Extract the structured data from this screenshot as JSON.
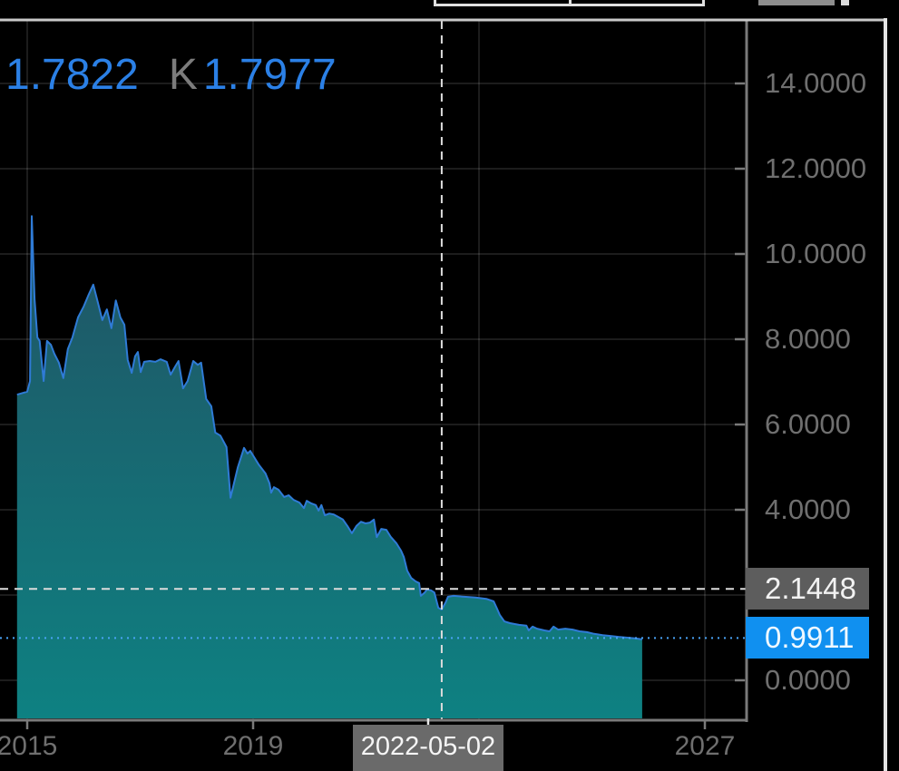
{
  "legend": {
    "low_value": "1.7822",
    "close_key": "K",
    "close_value": "1.7977"
  },
  "y_axis": {
    "tick_labels": [
      {
        "value": 14,
        "label": "14.0000"
      },
      {
        "value": 12,
        "label": "12.0000"
      },
      {
        "value": 10,
        "label": "10.0000"
      },
      {
        "value": 8,
        "label": "8.0000"
      },
      {
        "value": 6,
        "label": "6.0000"
      },
      {
        "value": 4,
        "label": "4.0000"
      },
      {
        "value": 0,
        "label": "0.0000"
      }
    ],
    "gridline_values": [
      14,
      12,
      10,
      8,
      6,
      4,
      2,
      0
    ]
  },
  "x_axis": {
    "tick_labels": [
      {
        "year": 2015,
        "label": "2015"
      },
      {
        "year": 2019,
        "label": "2019"
      },
      {
        "year": 2027,
        "label": "2027"
      }
    ],
    "gridline_years": [
      2015,
      2019,
      2023,
      2027
    ]
  },
  "crosshair": {
    "date_label": "2022-05-02",
    "price_label": "2.1448",
    "price_value": 2.1448,
    "time_year": 2022.34,
    "label_center_year": 2022.1
  },
  "last_price": {
    "label": "0.9911",
    "value": 0.9911
  },
  "colors": {
    "background": "#000000",
    "legend_blue": "#2b80e6",
    "legend_key_gray": "#7c7c7c",
    "line_blue": "#2f7bd6",
    "area_top": "#215263",
    "area_bottom": "#0e8182",
    "price_line_blue": "#49a3f5",
    "last_price_box_blue": "#1090f0",
    "crosshair_white": "#dcdcdc",
    "crosshair_box_gray": "#5d5d5d",
    "date_box_gray": "#6a6a6a",
    "grid": "rgba(255,255,255,0.15)",
    "axis_gray": "#7a7a7a",
    "label_gray": "#6f6f6f"
  },
  "chart_data": {
    "type": "area",
    "title": "",
    "xlabel": "",
    "ylabel": "",
    "grid": true,
    "legend_position": "none",
    "ylim": [
      0,
      15.5
    ],
    "xlim_years": [
      2014.52,
      2030.2
    ],
    "series": [
      {
        "name": "price",
        "points": [
          [
            2014.82,
            6.7
          ],
          [
            2015.0,
            6.77
          ],
          [
            2015.05,
            7.02
          ],
          [
            2015.08,
            10.89
          ],
          [
            2015.13,
            8.94
          ],
          [
            2015.18,
            8.04
          ],
          [
            2015.22,
            7.96
          ],
          [
            2015.29,
            7.02
          ],
          [
            2015.35,
            7.96
          ],
          [
            2015.42,
            7.87
          ],
          [
            2015.48,
            7.66
          ],
          [
            2015.56,
            7.45
          ],
          [
            2015.64,
            7.09
          ],
          [
            2015.72,
            7.77
          ],
          [
            2015.8,
            8.04
          ],
          [
            2015.9,
            8.51
          ],
          [
            2016.0,
            8.77
          ],
          [
            2016.08,
            9.02
          ],
          [
            2016.17,
            9.28
          ],
          [
            2016.25,
            8.87
          ],
          [
            2016.33,
            8.45
          ],
          [
            2016.41,
            8.7
          ],
          [
            2016.49,
            8.26
          ],
          [
            2016.57,
            8.91
          ],
          [
            2016.65,
            8.51
          ],
          [
            2016.72,
            8.34
          ],
          [
            2016.78,
            7.51
          ],
          [
            2016.85,
            7.21
          ],
          [
            2016.91,
            7.6
          ],
          [
            2016.96,
            7.7
          ],
          [
            2017.01,
            7.23
          ],
          [
            2017.07,
            7.47
          ],
          [
            2017.17,
            7.49
          ],
          [
            2017.27,
            7.47
          ],
          [
            2017.36,
            7.53
          ],
          [
            2017.47,
            7.47
          ],
          [
            2017.54,
            7.17
          ],
          [
            2017.62,
            7.36
          ],
          [
            2017.68,
            7.49
          ],
          [
            2017.76,
            6.85
          ],
          [
            2017.84,
            7.02
          ],
          [
            2017.94,
            7.49
          ],
          [
            2018.02,
            7.4
          ],
          [
            2018.08,
            7.45
          ],
          [
            2018.17,
            6.6
          ],
          [
            2018.26,
            6.43
          ],
          [
            2018.33,
            5.81
          ],
          [
            2018.42,
            5.74
          ],
          [
            2018.53,
            5.47
          ],
          [
            2018.6,
            4.28
          ],
          [
            2018.73,
            5.0
          ],
          [
            2018.84,
            5.45
          ],
          [
            2018.9,
            5.32
          ],
          [
            2018.95,
            5.38
          ],
          [
            2019.1,
            5.06
          ],
          [
            2019.22,
            4.85
          ],
          [
            2019.29,
            4.62
          ],
          [
            2019.32,
            4.4
          ],
          [
            2019.37,
            4.53
          ],
          [
            2019.45,
            4.47
          ],
          [
            2019.55,
            4.3
          ],
          [
            2019.63,
            4.34
          ],
          [
            2019.72,
            4.23
          ],
          [
            2019.82,
            4.17
          ],
          [
            2019.9,
            4.04
          ],
          [
            2019.95,
            4.21
          ],
          [
            2020.03,
            4.15
          ],
          [
            2020.11,
            4.11
          ],
          [
            2020.16,
            3.98
          ],
          [
            2020.21,
            4.11
          ],
          [
            2020.27,
            3.87
          ],
          [
            2020.35,
            3.91
          ],
          [
            2020.43,
            3.89
          ],
          [
            2020.51,
            3.83
          ],
          [
            2020.59,
            3.77
          ],
          [
            2020.67,
            3.62
          ],
          [
            2020.75,
            3.45
          ],
          [
            2020.83,
            3.62
          ],
          [
            2020.91,
            3.72
          ],
          [
            2020.99,
            3.68
          ],
          [
            2021.07,
            3.7
          ],
          [
            2021.14,
            3.77
          ],
          [
            2021.19,
            3.36
          ],
          [
            2021.27,
            3.55
          ],
          [
            2021.36,
            3.53
          ],
          [
            2021.44,
            3.36
          ],
          [
            2021.54,
            3.21
          ],
          [
            2021.62,
            3.04
          ],
          [
            2021.67,
            2.89
          ],
          [
            2021.73,
            2.57
          ],
          [
            2021.8,
            2.4
          ],
          [
            2021.88,
            2.32
          ],
          [
            2021.94,
            2.28
          ],
          [
            2021.97,
            1.98
          ],
          [
            2022.04,
            2.06
          ],
          [
            2022.08,
            2.13
          ],
          [
            2022.15,
            2.11
          ],
          [
            2022.21,
            2.06
          ],
          [
            2022.28,
            1.7
          ],
          [
            2022.34,
            1.66
          ],
          [
            2022.41,
            1.83
          ],
          [
            2022.45,
            1.96
          ],
          [
            2022.55,
            1.98
          ],
          [
            2022.74,
            1.96
          ],
          [
            2022.94,
            1.94
          ],
          [
            2023.13,
            1.91
          ],
          [
            2023.26,
            1.85
          ],
          [
            2023.32,
            1.68
          ],
          [
            2023.37,
            1.53
          ],
          [
            2023.45,
            1.38
          ],
          [
            2023.55,
            1.34
          ],
          [
            2023.71,
            1.3
          ],
          [
            2023.84,
            1.28
          ],
          [
            2023.88,
            1.17
          ],
          [
            2023.95,
            1.26
          ],
          [
            2024.03,
            1.21
          ],
          [
            2024.16,
            1.17
          ],
          [
            2024.25,
            1.15
          ],
          [
            2024.32,
            1.26
          ],
          [
            2024.4,
            1.19
          ],
          [
            2024.53,
            1.21
          ],
          [
            2024.66,
            1.19
          ],
          [
            2024.78,
            1.15
          ],
          [
            2024.91,
            1.13
          ],
          [
            2025.04,
            1.09
          ],
          [
            2025.19,
            1.06
          ],
          [
            2025.33,
            1.04
          ],
          [
            2025.47,
            1.02
          ],
          [
            2025.63,
            1.0
          ],
          [
            2025.78,
            0.98
          ],
          [
            2025.89,
            0.96
          ]
        ]
      }
    ]
  }
}
